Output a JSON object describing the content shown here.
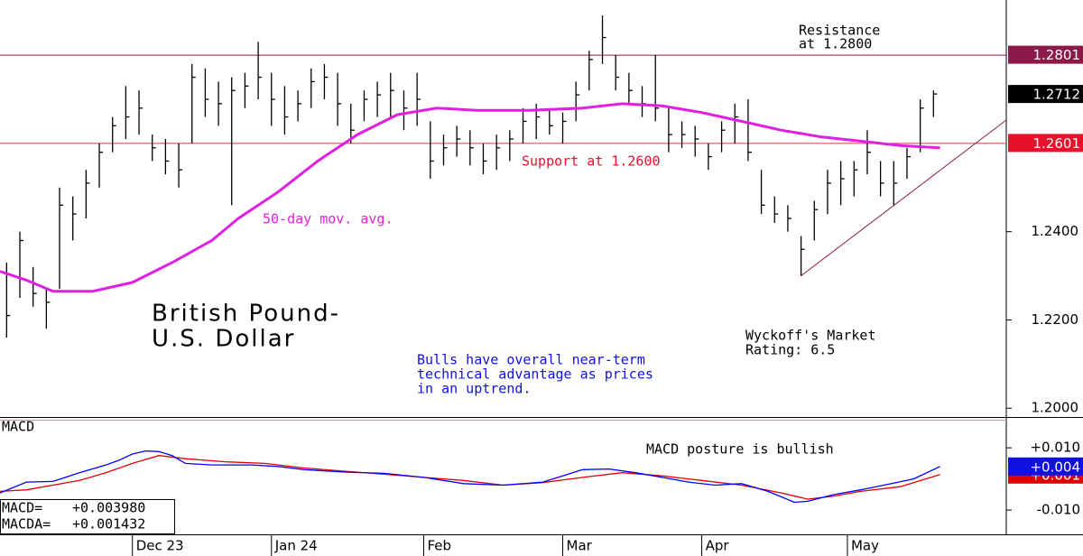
{
  "chart_data": [
    {
      "type": "ohlc",
      "title": [
        "British Pound-",
        "U.S. Dollar"
      ],
      "color": "#000000",
      "xlim": [
        0,
        152
      ],
      "ylim": [
        1.198,
        1.2925
      ],
      "yticks": [
        {
          "value": 1.2,
          "label": "1.2000"
        },
        {
          "value": 1.22,
          "label": "1.2200"
        },
        {
          "value": 1.24,
          "label": "1.2400"
        }
      ],
      "x": [
        1,
        3,
        5,
        7,
        9,
        11,
        13,
        15,
        17,
        19,
        21,
        23,
        25,
        27,
        29,
        31,
        33,
        35,
        37,
        39,
        41,
        43,
        45,
        47,
        49,
        51,
        53,
        55,
        57,
        59,
        61,
        63,
        65,
        67,
        69,
        71,
        73,
        75,
        77,
        79,
        81,
        83,
        85,
        87,
        89,
        91,
        93,
        95,
        97,
        99,
        101,
        103,
        105,
        107,
        109,
        111,
        113,
        115,
        117,
        119,
        121,
        123,
        125,
        127,
        129,
        131,
        133,
        135,
        137,
        139,
        141
      ],
      "high": [
        1.233,
        1.24,
        1.232,
        1.227,
        1.25,
        1.248,
        1.254,
        1.26,
        1.266,
        1.273,
        1.272,
        1.262,
        1.261,
        1.26,
        1.278,
        1.277,
        1.274,
        1.275,
        1.276,
        1.283,
        1.276,
        1.273,
        1.272,
        1.277,
        1.278,
        1.276,
        1.269,
        1.272,
        1.274,
        1.276,
        1.272,
        1.276,
        1.265,
        1.262,
        1.264,
        1.263,
        1.26,
        1.262,
        1.263,
        1.268,
        1.269,
        1.268,
        1.267,
        1.274,
        1.281,
        1.289,
        1.28,
        1.276,
        1.273,
        1.28,
        1.268,
        1.265,
        1.264,
        1.26,
        1.265,
        1.269,
        1.27,
        1.254,
        1.248,
        1.246,
        1.239,
        1.247,
        1.254,
        1.256,
        1.256,
        1.263,
        1.256,
        1.256,
        1.259,
        1.27,
        1.272
      ],
      "low": [
        1.216,
        1.225,
        1.223,
        1.218,
        1.227,
        1.238,
        1.243,
        1.25,
        1.258,
        1.261,
        1.262,
        1.256,
        1.253,
        1.25,
        1.26,
        1.266,
        1.264,
        1.246,
        1.268,
        1.27,
        1.264,
        1.262,
        1.265,
        1.268,
        1.27,
        1.264,
        1.26,
        1.265,
        1.266,
        1.266,
        1.263,
        1.264,
        1.252,
        1.255,
        1.257,
        1.255,
        1.253,
        1.254,
        1.256,
        1.26,
        1.261,
        1.262,
        1.26,
        1.265,
        1.272,
        1.278,
        1.272,
        1.269,
        1.266,
        1.265,
        1.258,
        1.259,
        1.257,
        1.254,
        1.258,
        1.26,
        1.256,
        1.244,
        1.242,
        1.24,
        1.23,
        1.238,
        1.244,
        1.246,
        1.248,
        1.253,
        1.248,
        1.246,
        1.252,
        1.258,
        1.266
      ],
      "close": [
        1.221,
        1.238,
        1.226,
        1.224,
        1.246,
        1.244,
        1.251,
        1.258,
        1.264,
        1.266,
        1.268,
        1.259,
        1.256,
        1.254,
        1.275,
        1.27,
        1.269,
        1.272,
        1.273,
        1.275,
        1.27,
        1.266,
        1.269,
        1.274,
        1.275,
        1.269,
        1.263,
        1.27,
        1.271,
        1.272,
        1.268,
        1.27,
        1.256,
        1.259,
        1.261,
        1.259,
        1.256,
        1.259,
        1.261,
        1.265,
        1.266,
        1.264,
        1.265,
        1.271,
        1.279,
        1.284,
        1.275,
        1.272,
        1.269,
        1.268,
        1.262,
        1.262,
        1.261,
        1.257,
        1.263,
        1.266,
        1.258,
        1.246,
        1.244,
        1.243,
        1.236,
        1.245,
        1.251,
        1.252,
        1.254,
        1.258,
        1.251,
        1.251,
        1.257,
        1.268,
        1.2712
      ],
      "ma": {
        "label": "50-day mov. avg.",
        "color": "#e020e0",
        "x": [
          0,
          4,
          8,
          14,
          20,
          26,
          32,
          36,
          42,
          48,
          54,
          60,
          66,
          72,
          80,
          88,
          94,
          100,
          106,
          112,
          118,
          124,
          130,
          136,
          142
        ],
        "values": [
          1.231,
          1.229,
          1.2265,
          1.2265,
          1.2285,
          1.233,
          1.238,
          1.243,
          1.249,
          1.256,
          1.262,
          1.2665,
          1.268,
          1.2675,
          1.2675,
          1.268,
          1.269,
          1.2685,
          1.267,
          1.265,
          1.263,
          1.2615,
          1.2605,
          1.2595,
          1.259
        ]
      },
      "hlines": [
        {
          "value": 1.28,
          "color": "#8b1a4a"
        },
        {
          "value": 1.26,
          "color": "#e03050"
        }
      ],
      "trendline": {
        "color": "#8b1a4a",
        "x": [
          121,
          152
        ],
        "values": [
          1.23,
          1.2653
        ]
      },
      "price_tags": [
        {
          "value": 1.2801,
          "label": "1.2801",
          "color": "#8b1a4a"
        },
        {
          "value": 1.2712,
          "label": "1.2712",
          "color": "#000000"
        },
        {
          "value": 1.2601,
          "label": "1.2601",
          "color": "#e8102a"
        }
      ],
      "annotations": {
        "resistance": [
          "Resistance",
          "at 1.2800"
        ],
        "support": "Support at 1.2600",
        "rating": [
          "Wyckoff's Market",
          "Rating: 6.5"
        ],
        "comment": [
          "Bulls have overall near-term",
          "technical advantage as prices",
          "in an uptrend."
        ]
      }
    },
    {
      "type": "line",
      "title": "MACD",
      "note": "MACD posture is bullish",
      "xlim": [
        0,
        152
      ],
      "ylim": [
        -0.0178,
        0.0196
      ],
      "yticks": [
        {
          "value": 0.01,
          "label": "+0.010"
        },
        {
          "value": -0.01,
          "label": "-0.010"
        }
      ],
      "xticks": [
        {
          "value": 20,
          "label": "Dec 23"
        },
        {
          "value": 41,
          "label": "Jan 24"
        },
        {
          "value": 64,
          "label": "Feb"
        },
        {
          "value": 85,
          "label": "Mar"
        },
        {
          "value": 106,
          "label": "Apr"
        },
        {
          "value": 128,
          "label": "May"
        }
      ],
      "series": [
        {
          "color": "#e00000",
          "x": [
            0,
            4,
            8,
            12,
            16,
            20,
            24,
            28,
            34,
            40,
            46,
            52,
            58,
            64,
            70,
            76,
            82,
            88,
            94,
            100,
            106,
            112,
            118,
            122,
            126,
            130,
            136,
            142
          ],
          "values": [
            -0.004,
            -0.0035,
            -0.002,
            -0.0005,
            0.002,
            0.005,
            0.0075,
            0.0065,
            0.0055,
            0.005,
            0.0035,
            0.0025,
            0.0015,
            0.0005,
            -0.0005,
            -0.002,
            -0.0012,
            0.0005,
            0.002,
            0.001,
            -0.0005,
            -0.002,
            -0.0045,
            -0.0065,
            -0.0055,
            -0.004,
            -0.0025,
            0.0014
          ]
        },
        {
          "color": "#0000ff",
          "x": [
            0,
            4,
            8,
            12,
            16,
            18,
            20,
            22,
            24,
            26,
            28,
            32,
            38,
            42,
            46,
            52,
            58,
            64,
            70,
            76,
            82,
            88,
            92,
            96,
            100,
            104,
            108,
            112,
            116,
            120,
            122,
            126,
            130,
            134,
            138,
            142
          ],
          "values": [
            -0.0045,
            -0.001,
            -0.0008,
            0.002,
            0.0045,
            0.006,
            0.008,
            0.009,
            0.0088,
            0.0075,
            0.005,
            0.0045,
            0.0045,
            0.004,
            0.003,
            0.0022,
            0.0018,
            0.0005,
            -0.0015,
            -0.002,
            -0.001,
            0.003,
            0.0032,
            0.002,
            0.0005,
            -0.001,
            -0.002,
            -0.0015,
            -0.004,
            -0.0075,
            -0.0072,
            -0.005,
            -0.0035,
            -0.0018,
            0,
            0.004
          ]
        }
      ],
      "price_tags": [
        {
          "value": 0.0014,
          "label": "+0.001",
          "color": "#e00000"
        },
        {
          "value": 0.004,
          "label": "+0.004",
          "color": "#1010e0"
        }
      ],
      "readouts": [
        {
          "label": "MACD=",
          "value": "+0.003980"
        },
        {
          "label": "MACDA=",
          "value": "+0.001432"
        }
      ]
    }
  ]
}
